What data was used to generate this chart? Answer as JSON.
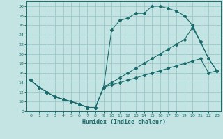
{
  "xlabel": "Humidex (Indice chaleur)",
  "bg_color": "#c4e4e4",
  "grid_color": "#a0cccc",
  "line_color": "#1a6b6b",
  "xlim": [
    -0.5,
    23.5
  ],
  "ylim": [
    8,
    31
  ],
  "xticks": [
    0,
    1,
    2,
    3,
    4,
    5,
    6,
    7,
    8,
    9,
    10,
    11,
    12,
    13,
    14,
    15,
    16,
    17,
    18,
    19,
    20,
    21,
    22,
    23
  ],
  "yticks": [
    8,
    10,
    12,
    14,
    16,
    18,
    20,
    22,
    24,
    26,
    28,
    30
  ],
  "line1_x": [
    0,
    1,
    2,
    3,
    4,
    5,
    6,
    7,
    8,
    9,
    10,
    11,
    12,
    13,
    14,
    15,
    16,
    17,
    18,
    19,
    20,
    21,
    22,
    23
  ],
  "line1_y": [
    14.5,
    13,
    12,
    11,
    10.5,
    10,
    9.5,
    8.8,
    8.8,
    13,
    25,
    27,
    27.5,
    28.5,
    28.5,
    30,
    30,
    29.5,
    29,
    28,
    26,
    22.5,
    19,
    16.5
  ],
  "line2_x": [
    0,
    1,
    2,
    3,
    4,
    5,
    6,
    7,
    8,
    9,
    10,
    11,
    12,
    13,
    14,
    15,
    16,
    17,
    18,
    19,
    20,
    21,
    22,
    23
  ],
  "line2_y": [
    14.5,
    13,
    12,
    11,
    10.5,
    10,
    9.5,
    8.8,
    8.8,
    13,
    14,
    15,
    16,
    17,
    18,
    19,
    20,
    21,
    22,
    23,
    25.5,
    22.5,
    19,
    16.5
  ],
  "line3_x": [
    0,
    1,
    2,
    3,
    4,
    5,
    6,
    7,
    8,
    9,
    10,
    11,
    12,
    13,
    14,
    15,
    16,
    17,
    18,
    19,
    20,
    21,
    22,
    23
  ],
  "line3_y": [
    14.5,
    13,
    12,
    11,
    10.5,
    10,
    9.5,
    8.8,
    8.8,
    13,
    13.5,
    14,
    14.5,
    15,
    15.5,
    16,
    16.5,
    17,
    17.5,
    18,
    18.5,
    19,
    16,
    16.5
  ]
}
